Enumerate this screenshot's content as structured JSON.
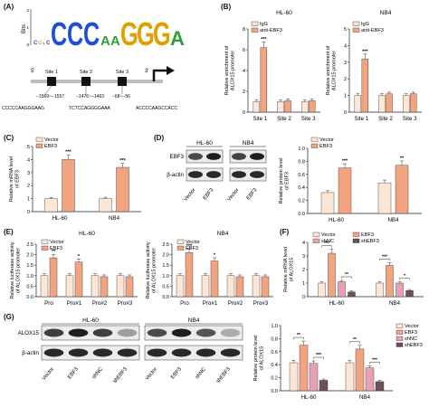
{
  "colors": {
    "control": "#fde6d6",
    "treat": "#f2a37f",
    "shnc": "#e7a0b4",
    "shebf3": "#6b4f5c",
    "axis": "#222222"
  },
  "panels": {
    "A": {
      "letter": "(A)",
      "logo_axis": "Bits",
      "logo_ticks": [
        "2",
        "1",
        "0"
      ],
      "axis_left": "5'",
      "axis_right": "3'",
      "sites": [
        {
          "label": "Site 1",
          "range": "−1569~−1557",
          "seq": "CCCCCAAGGGAAG"
        },
        {
          "label": "Site 2",
          "range": "−1476~−1463",
          "seq": "TCTCCAGGGGAAA"
        },
        {
          "label": "Site 3",
          "range": "−68~−56",
          "seq": "ACCCCAAGCCACC"
        }
      ]
    },
    "B": {
      "letter": "(B)",
      "ylabel": "Relative enrichment of ALOX15 promoter",
      "charts": [
        {
          "title": "HL-60",
          "legend": [
            "IgG",
            "anti-EBF3"
          ],
          "ylim": [
            0,
            8
          ],
          "yticks": [
            "0",
            "2",
            "4",
            "6",
            "8"
          ],
          "categories": [
            "Site 1",
            "Site 2",
            "Site 3"
          ],
          "series": [
            {
              "name": "IgG",
              "values": [
                1.0,
                1.0,
                1.0
              ]
            },
            {
              "name": "anti-EBF3",
              "values": [
                6.2,
                1.1,
                1.1
              ]
            }
          ],
          "annotations": [
            "***",
            "",
            ""
          ]
        },
        {
          "title": "NB4",
          "legend": [
            "IgG",
            "anti-EBF3"
          ],
          "ylim": [
            0,
            5
          ],
          "yticks": [
            "0",
            "1",
            "2",
            "3",
            "4",
            "5"
          ],
          "categories": [
            "Site 1",
            "Site 2",
            "Site 3"
          ],
          "series": [
            {
              "name": "IgG",
              "values": [
                1.0,
                1.0,
                1.0
              ]
            },
            {
              "name": "anti-EBF3",
              "values": [
                3.2,
                1.1,
                1.1
              ]
            }
          ],
          "annotations": [
            "***",
            "",
            ""
          ]
        }
      ]
    },
    "C": {
      "letter": "(C)",
      "ylabel": "Relative mRNA level of EBF3",
      "legend": [
        "Vector",
        "EBF3"
      ],
      "ylim": [
        0,
        5
      ],
      "yticks": [
        "0",
        "1",
        "2",
        "3",
        "4",
        "5"
      ],
      "categories": [
        "HL-60",
        "NB4"
      ],
      "series": [
        {
          "name": "Vector",
          "values": [
            1.0,
            1.0
          ]
        },
        {
          "name": "EBF3",
          "values": [
            4.0,
            3.4
          ]
        }
      ],
      "annotations": [
        "***",
        "***"
      ]
    },
    "D": {
      "letter": "(D)",
      "blot_titles": [
        "HL-60",
        "NB4"
      ],
      "row_labels": [
        "EBF3",
        "β-actin"
      ],
      "lane_labels": [
        "Vector",
        "EBF3",
        "Vector",
        "EBF3"
      ],
      "ylabel": "Relative protein level of EBF3",
      "legend": [
        "Vector",
        "EBF3"
      ],
      "ylim": [
        0,
        1.0
      ],
      "yticks": [
        "0.0",
        "0.2",
        "0.4",
        "0.6",
        "0.8",
        "1.0"
      ],
      "categories": [
        "HL-60",
        "NB4"
      ],
      "series": [
        {
          "name": "Vector",
          "values": [
            0.32,
            0.47
          ]
        },
        {
          "name": "EBF3",
          "values": [
            0.7,
            0.74
          ]
        }
      ],
      "annotations": [
        "***",
        "**"
      ]
    },
    "E": {
      "letter": "(E)",
      "ylabel": "Relative luciferase activity of ALOX15 promoter",
      "charts": [
        {
          "title": "HL-60",
          "legend": [
            "Vector",
            "EBF3"
          ],
          "ylim": [
            0,
            2.5
          ],
          "yticks": [
            "0.0",
            "0.5",
            "1.0",
            "1.5",
            "2.0",
            "2.5"
          ],
          "categories": [
            "Pro",
            "Pro#1",
            "Pro#2",
            "Pro#3"
          ],
          "series": [
            {
              "name": "Vector",
              "values": [
                1.0,
                1.0,
                1.0,
                1.0
              ]
            },
            {
              "name": "EBF3",
              "values": [
                1.85,
                1.65,
                0.95,
                0.95
              ]
            }
          ],
          "annotations": [
            "**",
            "*",
            "",
            ""
          ]
        },
        {
          "title": "NB4",
          "legend": [
            "Vector",
            "EBF3"
          ],
          "ylim": [
            0,
            2.5
          ],
          "yticks": [
            "0.0",
            "0.5",
            "1.0",
            "1.5",
            "2.0",
            "2.5"
          ],
          "categories": [
            "Pro",
            "Pro#1",
            "Pro#2",
            "Pro#3"
          ],
          "series": [
            {
              "name": "Vector",
              "values": [
                1.0,
                1.0,
                1.0,
                1.0
              ]
            },
            {
              "name": "EBF3",
              "values": [
                2.1,
                1.7,
                0.95,
                0.95
              ]
            }
          ],
          "annotations": [
            "***",
            "*",
            "",
            ""
          ]
        }
      ]
    },
    "F": {
      "letter": "(F)",
      "ylabel": "Relative mRNA level of ALOX15",
      "legend": [
        "Vector",
        "EBF3",
        "shNC",
        "shEBF3"
      ],
      "ylim": [
        0,
        4
      ],
      "yticks": [
        "0",
        "1",
        "2",
        "3",
        "4"
      ],
      "categories": [
        "HL-60",
        "NB4"
      ],
      "series": [
        {
          "name": "Vector",
          "values": [
            1.0,
            1.0
          ]
        },
        {
          "name": "EBF3",
          "values": [
            3.2,
            2.3
          ]
        },
        {
          "name": "shNC",
          "values": [
            1.1,
            1.0
          ]
        },
        {
          "name": "shEBF3",
          "values": [
            0.35,
            0.45
          ]
        }
      ],
      "brackets": [
        [
          "***",
          "**"
        ],
        [
          "***",
          "*"
        ]
      ]
    },
    "G": {
      "letter": "(G)",
      "blot_titles": [
        "HL-60",
        "NB4"
      ],
      "row_labels": [
        "ALOX15",
        "β-actin"
      ],
      "lane_labels": [
        "Vector",
        "EBF3",
        "shNC",
        "shEBF3",
        "Vector",
        "EBF3",
        "shNC",
        "shEBF3"
      ],
      "ylabel": "Relative protein level of ALOX15",
      "legend": [
        "Vector",
        "EBF3",
        "shNC",
        "shEBF3"
      ],
      "ylim": [
        0,
        1.0
      ],
      "yticks": [
        "0.0",
        "0.2",
        "0.4",
        "0.6",
        "0.8",
        "1.0"
      ],
      "categories": [
        "HL-60",
        "NB4"
      ],
      "series": [
        {
          "name": "Vector",
          "values": [
            0.43,
            0.43
          ]
        },
        {
          "name": "EBF3",
          "values": [
            0.7,
            0.64
          ]
        },
        {
          "name": "shNC",
          "values": [
            0.42,
            0.35
          ]
        },
        {
          "name": "shEBF3",
          "values": [
            0.16,
            0.14
          ]
        }
      ],
      "brackets": [
        [
          "**",
          "***"
        ],
        [
          "**",
          "***"
        ]
      ]
    }
  }
}
